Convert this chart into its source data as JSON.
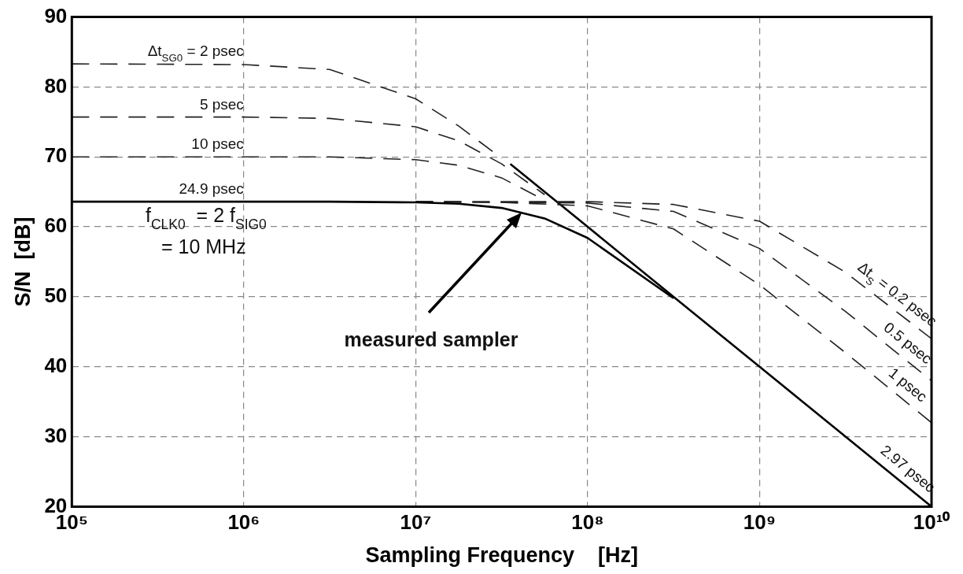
{
  "chart_data": {
    "type": "line",
    "xlabel": "Sampling Frequency    [Hz]",
    "ylabel": "S/N  [dB]",
    "log": "x",
    "grid": true,
    "legend": false,
    "marker": "none",
    "xlim": [
      100000,
      10000000000
    ],
    "ylim": [
      20,
      90
    ],
    "xticks": [
      {
        "value": 100000,
        "label": "10⁵"
      },
      {
        "value": 1000000,
        "label": "10⁶"
      },
      {
        "value": 10000000,
        "label": "10⁷"
      },
      {
        "value": 100000000,
        "label": "10⁸"
      },
      {
        "value": 1000000000,
        "label": "10⁹"
      },
      {
        "value": 10000000000,
        "label": "10¹⁰"
      }
    ],
    "yticks": [
      20,
      30,
      40,
      50,
      60,
      70,
      80,
      90
    ],
    "series": [
      {
        "name": "Δt$_{SG0}$ = 2 psec",
        "color": "#222222",
        "line_style": "dashed",
        "x": [
          100000,
          1000000,
          3160000,
          10000000,
          17800000,
          31600000
        ],
        "values": [
          83.3,
          83.2,
          82.5,
          78.3,
          74.4,
          69.8
        ]
      },
      {
        "name": "5 psec",
        "color": "#222222",
        "line_style": "dashed",
        "x": [
          100000,
          1000000,
          3160000,
          10000000,
          17800000,
          31600000,
          56200000
        ],
        "values": [
          75.7,
          75.7,
          75.5,
          74.3,
          72.3,
          69.0,
          64.6
        ]
      },
      {
        "name": "10 psec",
        "color": "#222222",
        "line_style": "dashed",
        "x": [
          100000,
          1000000,
          3160000,
          10000000,
          17800000,
          31600000,
          56200000
        ],
        "values": [
          70.0,
          70.0,
          70.0,
          69.6,
          68.8,
          67.0,
          63.8
        ]
      },
      {
        "name": "24.9 psec",
        "color": "#000000",
        "line_style": "solid",
        "x": [
          100000,
          1000000,
          3160000,
          10000000,
          17800000,
          31600000,
          56200000,
          100000000,
          316000000
        ],
        "values": [
          63.6,
          63.6,
          63.6,
          63.5,
          63.3,
          62.7,
          61.2,
          58.4,
          49.8
        ]
      },
      {
        "name": "Δt$_{S}$ = 0.2 psec",
        "color": "#222222",
        "line_style": "dashed",
        "x": [
          10000000,
          100000000,
          316000000,
          1000000000,
          3160000000,
          10000000000
        ],
        "values": [
          63.6,
          63.6,
          63.2,
          60.8,
          53.5,
          44.0
        ]
      },
      {
        "name": "0.5 psec",
        "color": "#222222",
        "line_style": "dashed",
        "x": [
          10000000,
          100000000,
          316000000,
          1000000000,
          3160000000,
          10000000000
        ],
        "values": [
          63.6,
          63.4,
          62.2,
          56.9,
          47.9,
          38.0
        ]
      },
      {
        "name": "1 psec",
        "color": "#222222",
        "line_style": "dashed",
        "x": [
          10000000,
          31600000,
          100000000,
          316000000,
          1000000000,
          3160000000,
          10000000000
        ],
        "values": [
          63.6,
          63.5,
          63.0,
          59.7,
          51.7,
          42.0,
          32.0
        ]
      },
      {
        "name": "2.97 psec",
        "color": "#000000",
        "line_style": "solid",
        "x": [
          35500000,
          100000000,
          316000000,
          1000000000,
          3160000000,
          10000000000
        ],
        "values": [
          69.0,
          60.0,
          50.0,
          40.0,
          30.0,
          20.0
        ]
      }
    ],
    "annotations": [
      "f$_{CLK0}$  = 2 f$_{SIG0}$",
      "= 10 MHz",
      "measured sampler"
    ]
  }
}
